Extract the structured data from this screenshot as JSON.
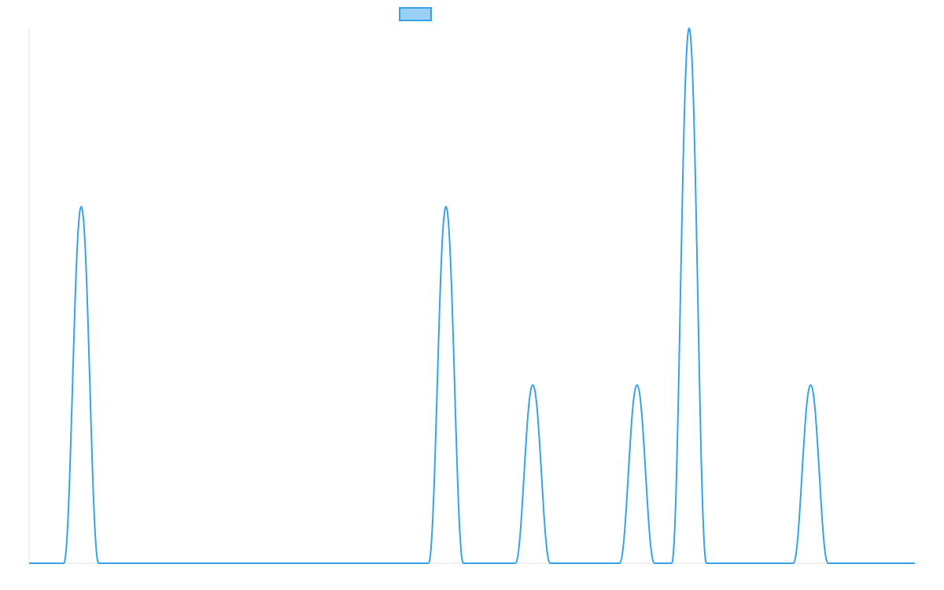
{
  "chart_data": {
    "type": "line",
    "x": [
      0,
      1,
      2,
      3,
      4,
      5,
      6,
      7,
      8,
      9,
      10,
      11,
      12,
      13,
      14,
      15,
      16,
      17,
      18,
      19,
      20,
      21,
      22,
      23,
      24,
      25,
      26,
      27,
      28,
      29,
      30,
      31,
      32,
      33,
      34,
      35,
      36,
      37,
      38,
      39,
      40,
      41,
      42,
      43,
      44,
      45,
      46,
      47,
      48,
      49,
      50,
      51
    ],
    "xlim": [
      0,
      51
    ],
    "ylim": [
      0,
      3
    ],
    "series": [
      {
        "name": "",
        "values": [
          0,
          0,
          0,
          2,
          0,
          0,
          0,
          0,
          0,
          0,
          0,
          0,
          0,
          0,
          0,
          0,
          0,
          0,
          0,
          0,
          0,
          0,
          0,
          0,
          2,
          0,
          0,
          0,
          0,
          1,
          0,
          0,
          0,
          0,
          0,
          1,
          0,
          0,
          3,
          0,
          0,
          0,
          0,
          0,
          0,
          1,
          0,
          0,
          0,
          0,
          0,
          0
        ]
      }
    ],
    "title": "",
    "xlabel": "",
    "ylabel": "",
    "grid": false,
    "legend_position": "top-center",
    "colors": {
      "line": "#36a2eb",
      "legend_fill": "#9ad0f5",
      "axis": "#e5e5e5"
    }
  }
}
